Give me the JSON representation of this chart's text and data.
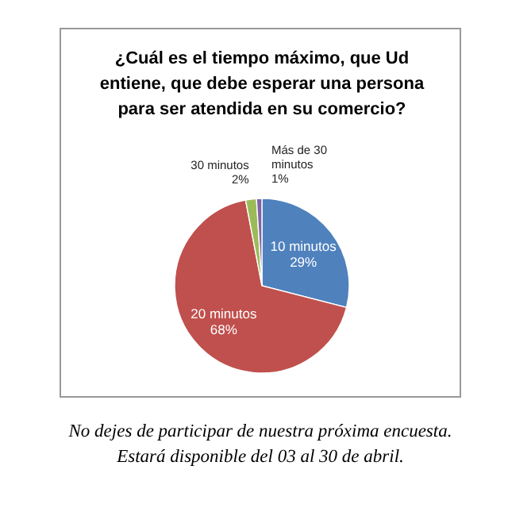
{
  "chart_data": {
    "type": "pie",
    "title": "¿Cuál es el tiempo máximo, que Ud entiene, que debe esperar una persona para ser atendida en su comercio?",
    "categories": [
      "10 minutos",
      "20 minutos",
      "30 minutos",
      "Más de 30 minutos"
    ],
    "values": [
      29,
      68,
      2,
      1
    ],
    "colors": [
      "#4f81bd",
      "#c0504d",
      "#9bbb59",
      "#8064a2"
    ],
    "value_labels": [
      "29%",
      "68%",
      "2%",
      "1%"
    ],
    "annotations": [
      "No dejes de participar de nuestra próxima encuesta. Estará disponible del 03 al 30 de abril."
    ]
  }
}
